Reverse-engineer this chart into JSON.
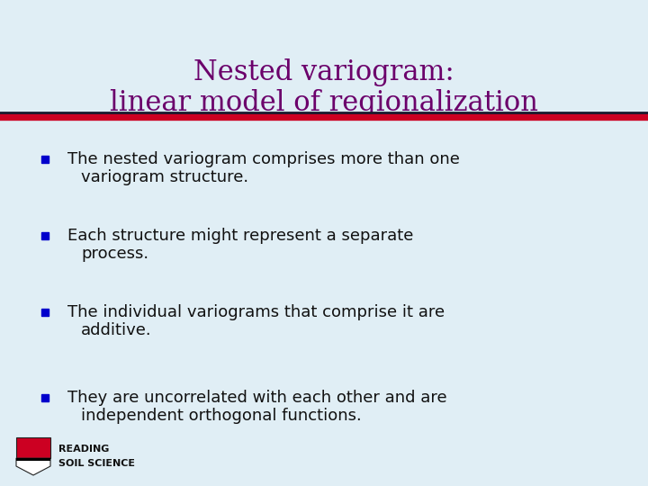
{
  "title_line1": "Nested variogram:",
  "title_line2": "linear model of regionalization",
  "title_color": "#6B006B",
  "background_color": "#E0EEF5",
  "divider_color_red": "#CC0022",
  "divider_color_dark": "#1a1a2e",
  "bullet_color": "#0000CC",
  "text_color": "#111111",
  "bullets": [
    "The nested variogram comprises more than one\nvariogram structure.",
    "Each structure might represent a separate\nprocess.",
    "The individual variograms that comprise it are\nadditive.",
    "They are uncorrelated with each other and are\nindependent orthogonal functions."
  ],
  "footer_text_line1": "READING",
  "footer_text_line2": "SOIL SCIENCE",
  "title_fontsize": 22,
  "bullet_fontsize": 13
}
